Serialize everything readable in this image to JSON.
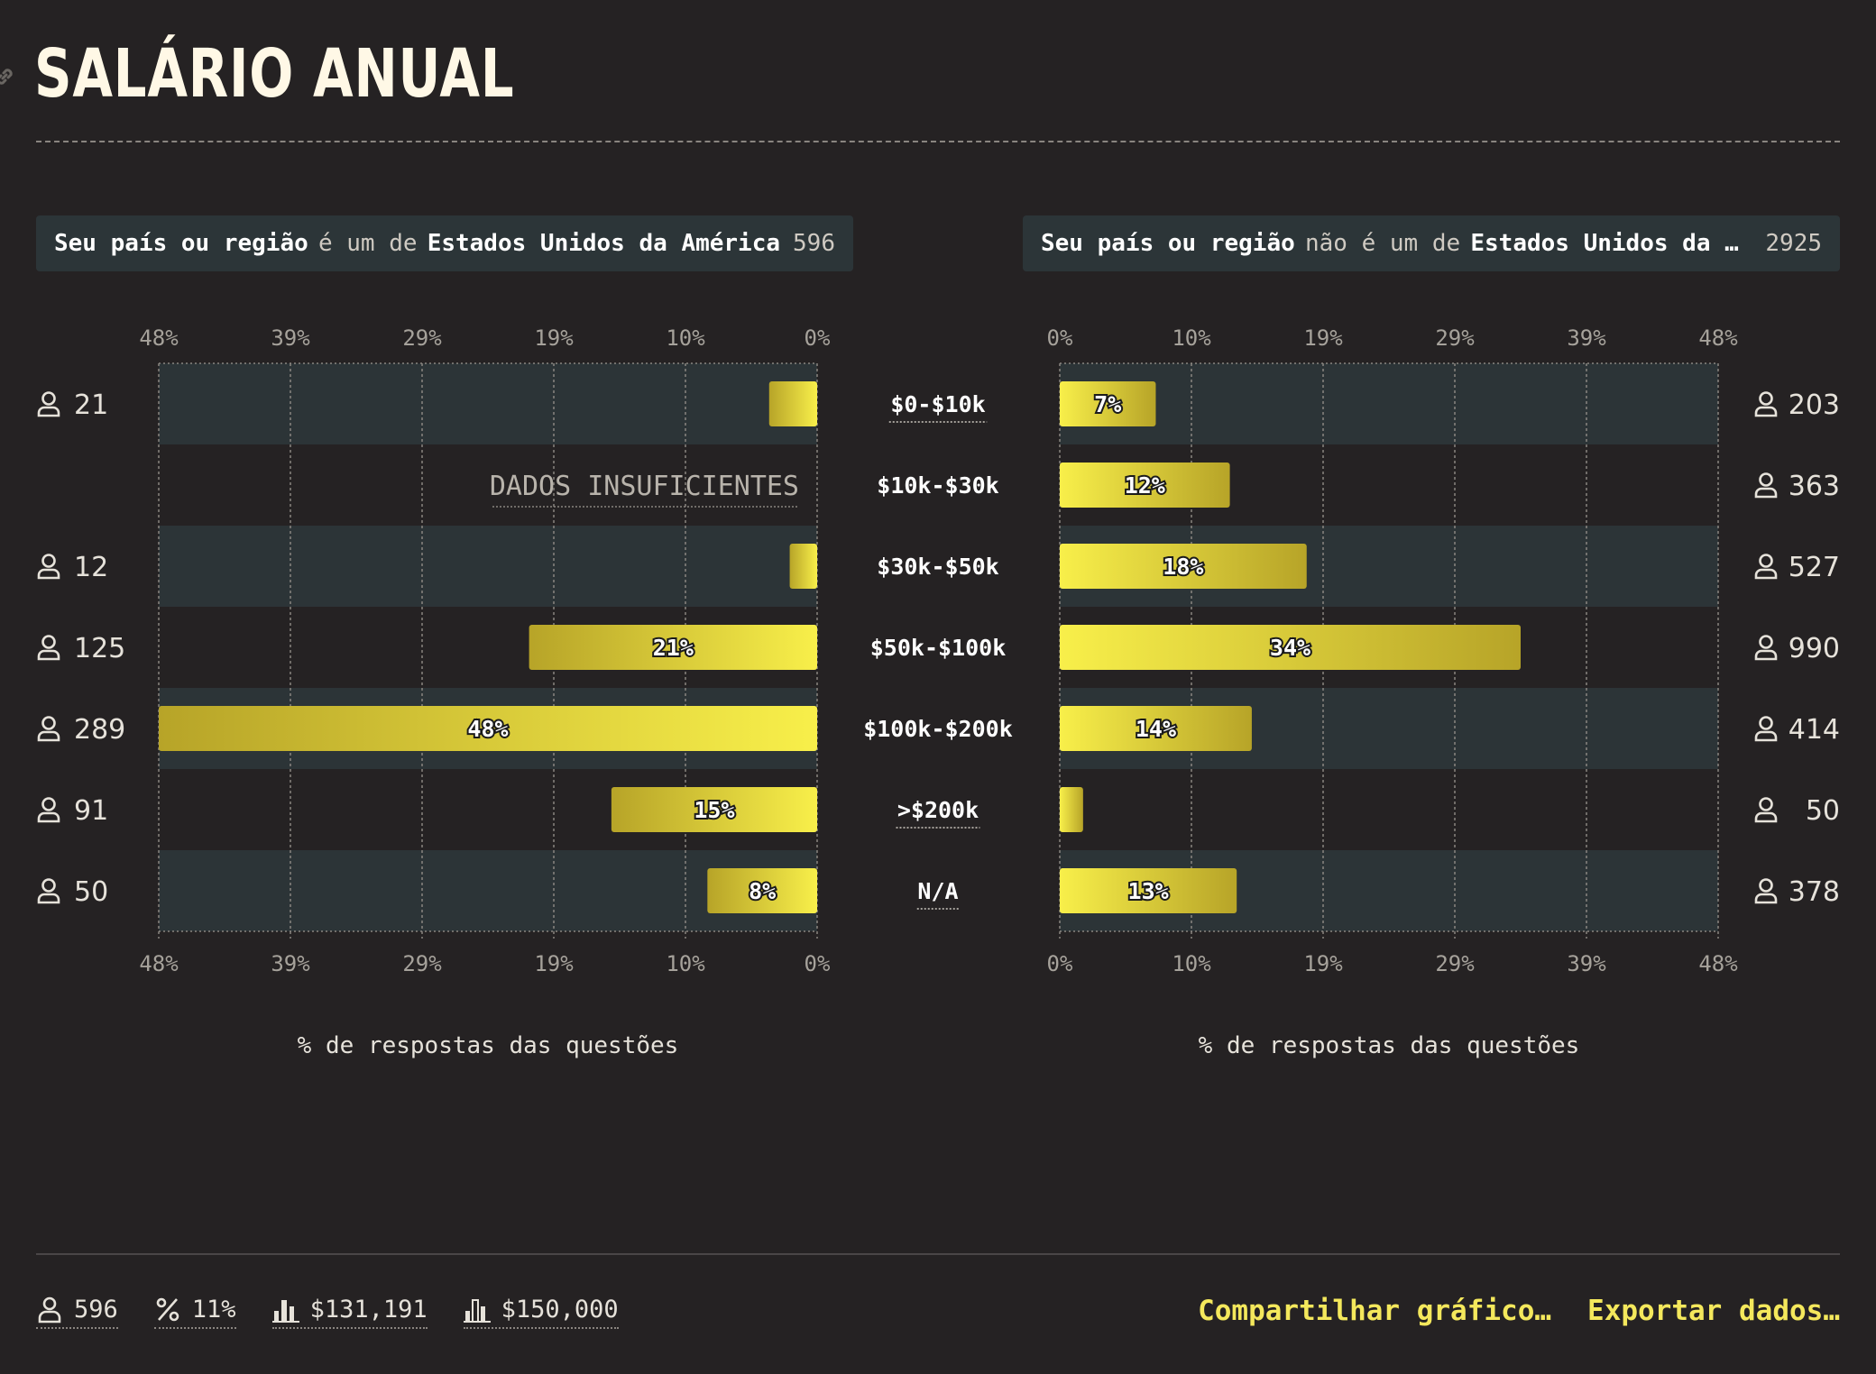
{
  "title": "SALÁRIO ANUAL",
  "icons": {
    "link": "link-icon",
    "person": "person-icon",
    "percent": "percent-icon",
    "mean": "bar-chart-icon",
    "median": "bar-chart-icon"
  },
  "colors": {
    "bar_start": "#f8ef4a",
    "bar_end": "#b7a428",
    "band": "#2c3437",
    "title": "#fff8e6",
    "action": "#f4e85c"
  },
  "filters": {
    "left": {
      "a": "Seu país ou região",
      "op": "é um de",
      "b": "Estados Unidos da América",
      "count": "596"
    },
    "right": {
      "a": "Seu país ou região",
      "op": "não é um de",
      "b": "Estados Unidos da América",
      "count": "2925"
    }
  },
  "insufficient_label": "DADOS INSUFICIENTES",
  "chart_data": {
    "type": "bar",
    "categories": [
      "$0-$10k",
      "$10k-$30k",
      "$30k-$50k",
      "$50k-$100k",
      "$100k-$200k",
      ">$200k",
      "N/A"
    ],
    "underlined_categories": [
      "$0-$10k",
      ">$200k",
      "N/A"
    ],
    "xlabel": "% de respostas das questões",
    "ticks": [
      "0%",
      "10%",
      "19%",
      "29%",
      "39%",
      "48%"
    ],
    "tick_values": [
      0,
      9.6,
      19.2,
      28.8,
      38.4,
      48
    ],
    "xlim": [
      0,
      48
    ],
    "series": [
      {
        "counts": [
          "21",
          "",
          "12",
          "125",
          "289",
          "91",
          "50"
        ],
        "values": [
          3.5,
          null,
          2.0,
          21,
          48,
          15,
          8
        ],
        "labels": [
          "",
          "",
          "",
          "21%",
          "48%",
          "15%",
          "8%"
        ]
      },
      {
        "counts": [
          "203",
          "363",
          "527",
          "990",
          "414",
          "50",
          "378"
        ],
        "values": [
          7,
          12.4,
          18,
          33.6,
          14,
          1.7,
          12.9
        ],
        "labels": [
          "7%",
          "12%",
          "18%",
          "34%",
          "14%",
          "",
          "13%"
        ]
      }
    ]
  },
  "footer": {
    "stats": [
      {
        "name": "respondents-stat",
        "icon": "person-icon",
        "value": "596"
      },
      {
        "name": "percent-stat",
        "icon": "percent-icon",
        "value": "11%"
      },
      {
        "name": "mean-stat",
        "icon": "bar-chart-icon",
        "value": "$131,191"
      },
      {
        "name": "median-stat",
        "icon": "bar-chart-icon",
        "value": "$150,000"
      }
    ],
    "share_label": "Compartilhar gráfico…",
    "export_label": "Exportar dados…"
  }
}
